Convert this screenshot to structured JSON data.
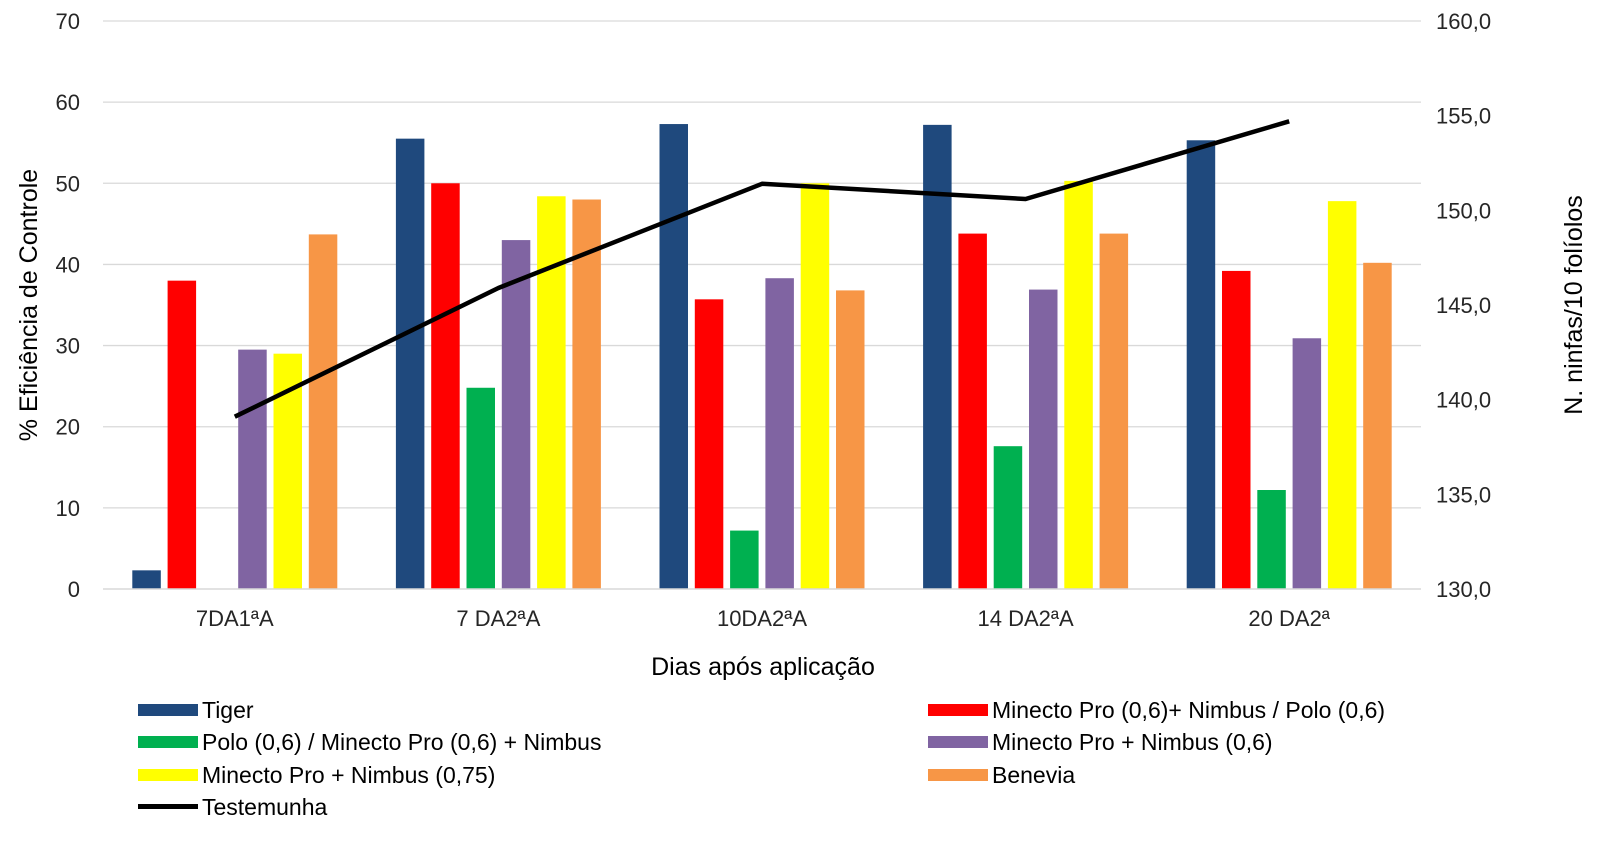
{
  "chart_data": {
    "type": "bar",
    "title": "",
    "xlabel": "Dias após aplicação",
    "ylabel": "% Eficiência de Controle",
    "y2label": "N. ninfas/10 folíolos",
    "categories": [
      "7DA1ªA",
      "7 DA2ªA",
      "10DA2ªA",
      "14 DA2ªA",
      "20 DA2ª"
    ],
    "ylim": [
      0,
      70
    ],
    "yticks": [
      "0",
      "10",
      "20",
      "30",
      "40",
      "50",
      "60",
      "70"
    ],
    "y2lim": [
      130,
      160
    ],
    "y2ticks": [
      "130,0",
      "135,0",
      "140,0",
      "145,0",
      "150,0",
      "155,0",
      "160,0"
    ],
    "grid": true,
    "legend_position": "bottom",
    "series": [
      {
        "name": "Tiger",
        "color": "#1f497d",
        "values": [
          2.3,
          55.5,
          57.3,
          57.2,
          55.3
        ]
      },
      {
        "name": "Minecto Pro (0,6)+ Nimbus / Polo (0,6)",
        "color": "#ff0000",
        "values": [
          38.0,
          50.0,
          35.7,
          43.8,
          39.2
        ]
      },
      {
        "name": "Polo (0,6) / Minecto Pro (0,6) + Nimbus",
        "color": "#00b050",
        "values": [
          0,
          24.8,
          7.2,
          17.6,
          12.2
        ]
      },
      {
        "name": "Minecto Pro + Nimbus (0,6)",
        "color": "#8064a2",
        "values": [
          29.5,
          43.0,
          38.3,
          36.9,
          30.9
        ]
      },
      {
        "name": "Minecto Pro + Nimbus (0,75)",
        "color": "#ffff00",
        "values": [
          29.0,
          48.4,
          50.0,
          50.3,
          47.8
        ]
      },
      {
        "name": "Benevia",
        "color": "#f79646",
        "values": [
          43.7,
          48.0,
          36.8,
          43.8,
          40.2
        ]
      }
    ],
    "line_series": {
      "name": "Testemunha",
      "color": "#000000",
      "axis": "secondary",
      "values": [
        139.1,
        145.9,
        151.4,
        150.6,
        154.7
      ]
    }
  }
}
